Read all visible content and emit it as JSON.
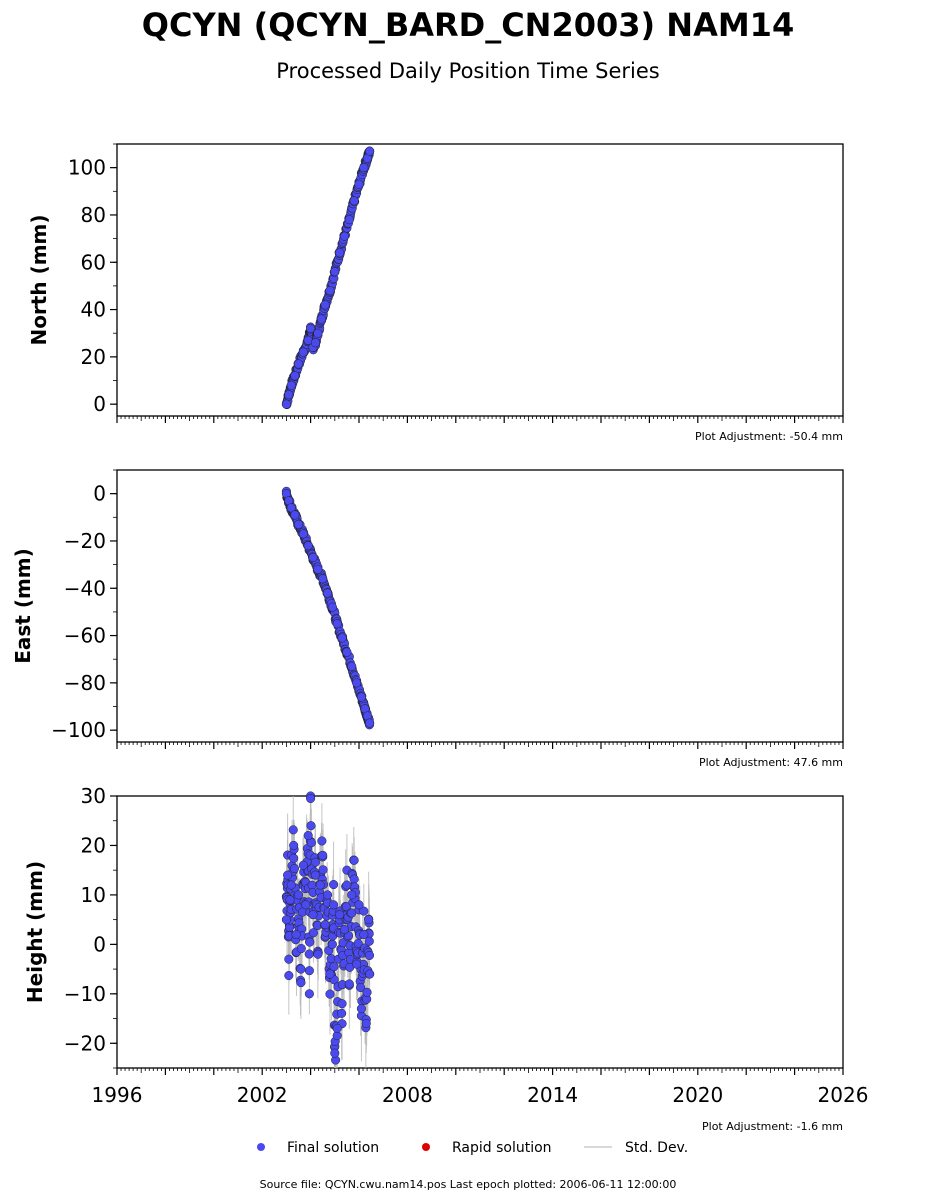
{
  "title": "QCYN (QCYN_BARD_CN2003) NAM14",
  "subtitle": "Processed Daily Position Time Series",
  "source_note": "Source file: QCYN.cwu.nam14.pos  Last epoch plotted: 2006-06-11 12:00:00",
  "legend": {
    "final": "Final solution",
    "rapid": "Rapid solution",
    "std": "Std. Dev."
  },
  "colors": {
    "final": "#4a4af0",
    "rapid": "#dd0000",
    "std": "#b8b8b8"
  },
  "chart_data": [
    {
      "type": "scatter",
      "ylabel": "North (mm)",
      "adjustment": "Plot Adjustment: -50.4 mm",
      "xlim": [
        1996,
        2026
      ],
      "ylim": [
        -5,
        110
      ],
      "yticks": [
        0,
        20,
        40,
        60,
        80,
        100
      ],
      "ytick_labels": [
        "0",
        "20",
        "40",
        "60",
        "80",
        "100"
      ],
      "grid": false,
      "series": [
        {
          "name": "Final solution",
          "x": [
            2003.0,
            2003.1,
            2003.2,
            2003.35,
            2003.5,
            2003.7,
            2003.9,
            2004.0,
            2004.1,
            2004.2,
            2004.3,
            2004.45,
            2004.6,
            2004.8,
            2005.0,
            2005.2,
            2005.4,
            2005.6,
            2005.8,
            2006.0,
            2006.2,
            2006.35,
            2006.44
          ],
          "y": [
            0,
            4,
            8,
            12,
            17,
            22,
            27,
            32,
            24,
            26,
            30,
            36,
            42,
            48,
            56,
            64,
            71,
            78,
            86,
            93,
            100,
            104,
            107
          ]
        }
      ]
    },
    {
      "type": "scatter",
      "ylabel": "East (mm)",
      "adjustment": "Plot Adjustment: 47.6 mm",
      "xlim": [
        1996,
        2026
      ],
      "ylim": [
        -105,
        10
      ],
      "yticks": [
        0,
        -20,
        -40,
        -60,
        -80,
        -100
      ],
      "ytick_labels": [
        "0",
        "−20",
        "−40",
        "−60",
        "−80",
        "−100"
      ],
      "grid": false,
      "series": [
        {
          "name": "Final solution",
          "x": [
            2003.0,
            2003.1,
            2003.2,
            2003.35,
            2003.5,
            2003.7,
            2003.9,
            2004.1,
            2004.3,
            2004.5,
            2004.7,
            2004.9,
            2005.1,
            2005.3,
            2005.5,
            2005.7,
            2005.9,
            2006.1,
            2006.25,
            2006.35,
            2006.44
          ],
          "y": [
            0,
            -3,
            -6,
            -9,
            -13,
            -17,
            -22,
            -27,
            -32,
            -36,
            -42,
            -48,
            -55,
            -61,
            -67,
            -73,
            -80,
            -86,
            -91,
            -94,
            -97
          ]
        }
      ]
    },
    {
      "type": "scatter",
      "ylabel": "Height (mm)",
      "adjustment": "Plot Adjustment: -1.6 mm",
      "xlim": [
        1996,
        2026
      ],
      "ylim": [
        -25,
        30
      ],
      "yticks": [
        30,
        20,
        10,
        0,
        -10,
        -20
      ],
      "ytick_labels": [
        "30",
        "20",
        "10",
        "0",
        "−10",
        "−20"
      ],
      "xticks": [
        1996,
        2002,
        2008,
        2014,
        2020,
        2026
      ],
      "xtick_labels": [
        "1996",
        "2002",
        "2008",
        "2014",
        "2020",
        "2026"
      ],
      "grid": false,
      "series": [
        {
          "name": "Final solution",
          "x": [
            2003.0,
            2003.05,
            2003.1,
            2003.15,
            2003.2,
            2003.3,
            2003.4,
            2003.5,
            2003.6,
            2003.7,
            2003.8,
            2003.9,
            2003.95,
            2004.0,
            2004.1,
            2004.2,
            2004.3,
            2004.4,
            2004.5,
            2004.6,
            2004.7,
            2004.8,
            2004.9,
            2004.95,
            2005.0,
            2005.1,
            2005.2,
            2005.3,
            2005.4,
            2005.5,
            2005.6,
            2005.7,
            2005.8,
            2005.9,
            2006.0,
            2006.1,
            2006.2,
            2006.3,
            2006.4,
            2006.44
          ],
          "y": [
            5,
            14,
            -3,
            9,
            12,
            20,
            2,
            10,
            -5,
            16,
            8,
            22,
            -10,
            29.5,
            6,
            14,
            -2,
            12,
            18,
            4,
            10,
            -6,
            0,
            8,
            -22,
            -17,
            6,
            -12,
            3,
            12,
            -8,
            10,
            17,
            -4,
            8,
            -13,
            2,
            -16,
            5,
            -6
          ]
        }
      ]
    }
  ]
}
